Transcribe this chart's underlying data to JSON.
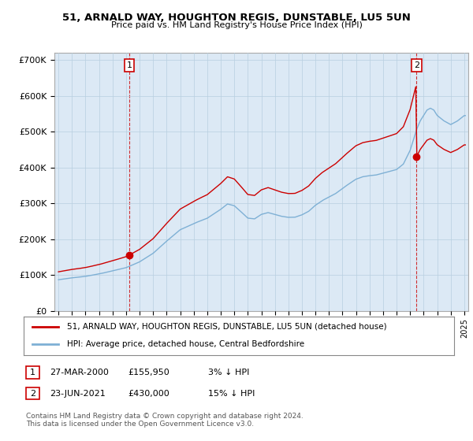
{
  "title": "51, ARNALD WAY, HOUGHTON REGIS, DUNSTABLE, LU5 5UN",
  "subtitle": "Price paid vs. HM Land Registry's House Price Index (HPI)",
  "ylabel_ticks": [
    "£0",
    "£100K",
    "£200K",
    "£300K",
    "£400K",
    "£500K",
    "£600K",
    "£700K"
  ],
  "ylabel_values": [
    0,
    100000,
    200000,
    300000,
    400000,
    500000,
    600000,
    700000
  ],
  "ylim": [
    0,
    720000
  ],
  "legend_line1": "51, ARNALD WAY, HOUGHTON REGIS, DUNSTABLE, LU5 5UN (detached house)",
  "legend_line2": "HPI: Average price, detached house, Central Bedfordshire",
  "note1_date": "27-MAR-2000",
  "note1_price": "£155,950",
  "note1_hpi": "3% ↓ HPI",
  "note2_date": "23-JUN-2021",
  "note2_price": "£430,000",
  "note2_hpi": "15% ↓ HPI",
  "footer": "Contains HM Land Registry data © Crown copyright and database right 2024.\nThis data is licensed under the Open Government Licence v3.0.",
  "sale1_year": 2000.23,
  "sale1_value": 155950,
  "sale2_year": 2021.48,
  "sale2_value": 430000,
  "hpi_color": "#7eb0d5",
  "price_color": "#cc0000",
  "plot_bg_color": "#dce9f5",
  "background_color": "#ffffff",
  "grid_color": "#b8cfe0"
}
